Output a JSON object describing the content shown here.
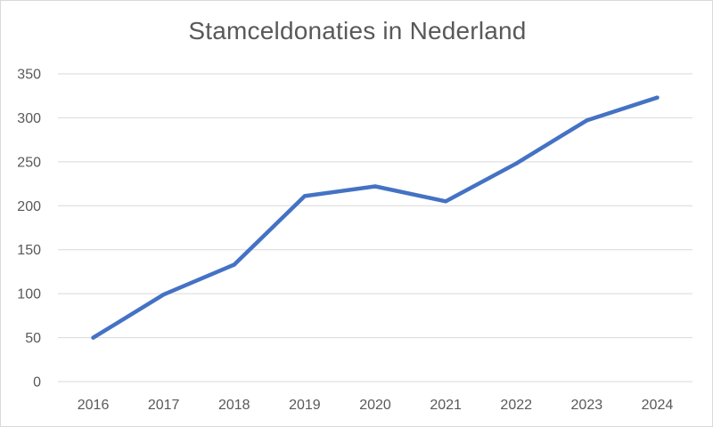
{
  "chart_data": {
    "type": "line",
    "title": "Stamceldonaties in Nederland",
    "xlabel": "",
    "ylabel": "",
    "categories": [
      "2016",
      "2017",
      "2018",
      "2019",
      "2020",
      "2021",
      "2022",
      "2023",
      "2024"
    ],
    "series": [
      {
        "values": [
          50,
          99,
          133,
          211,
          222,
          205,
          248,
          297,
          323
        ],
        "color": "#4472c4"
      }
    ],
    "ylim": [
      0,
      350
    ],
    "yticks": [
      0,
      50,
      100,
      150,
      200,
      250,
      300,
      350
    ],
    "grid": true,
    "legend": "none",
    "colors": {
      "gridline": "#d9d9d9",
      "text": "#595959",
      "border": "#d9d9d9"
    }
  }
}
